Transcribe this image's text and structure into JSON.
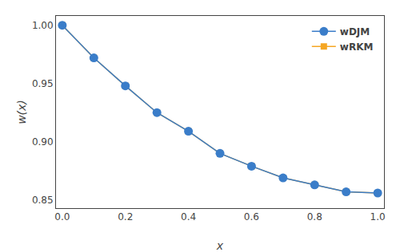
{
  "chart_data": {
    "type": "line",
    "x": [
      0.0,
      0.1,
      0.2,
      0.3,
      0.4,
      0.5,
      0.6,
      0.7,
      0.8,
      0.9,
      1.0
    ],
    "series": [
      {
        "name": "wRKM",
        "color": "#F5A623",
        "marker": "square",
        "values": [
          1.0,
          0.972,
          0.948,
          0.925,
          0.909,
          0.89,
          0.879,
          0.869,
          0.863,
          0.857,
          0.856
        ]
      },
      {
        "name": "wDJM",
        "color": "#3A7DC9",
        "marker": "circle",
        "values": [
          1.0,
          0.972,
          0.948,
          0.925,
          0.909,
          0.89,
          0.879,
          0.869,
          0.863,
          0.857,
          0.856
        ]
      }
    ],
    "xlabel": "x",
    "ylabel": "w(x)",
    "xlim": [
      -0.02,
      1.02
    ],
    "ylim": [
      0.843,
      1.008
    ],
    "xticks": [
      {
        "value": 0.0,
        "label": "0.0"
      },
      0.2,
      0.4,
      0.6,
      0.8,
      {
        "value": 1.0,
        "label": "1.0"
      }
    ],
    "yticks": [
      0.85,
      {
        "value": 0.9,
        "label": "0.90"
      },
      0.95,
      {
        "value": 1.0,
        "label": "1.00"
      }
    ],
    "grid": false,
    "legend": "upper right"
  }
}
